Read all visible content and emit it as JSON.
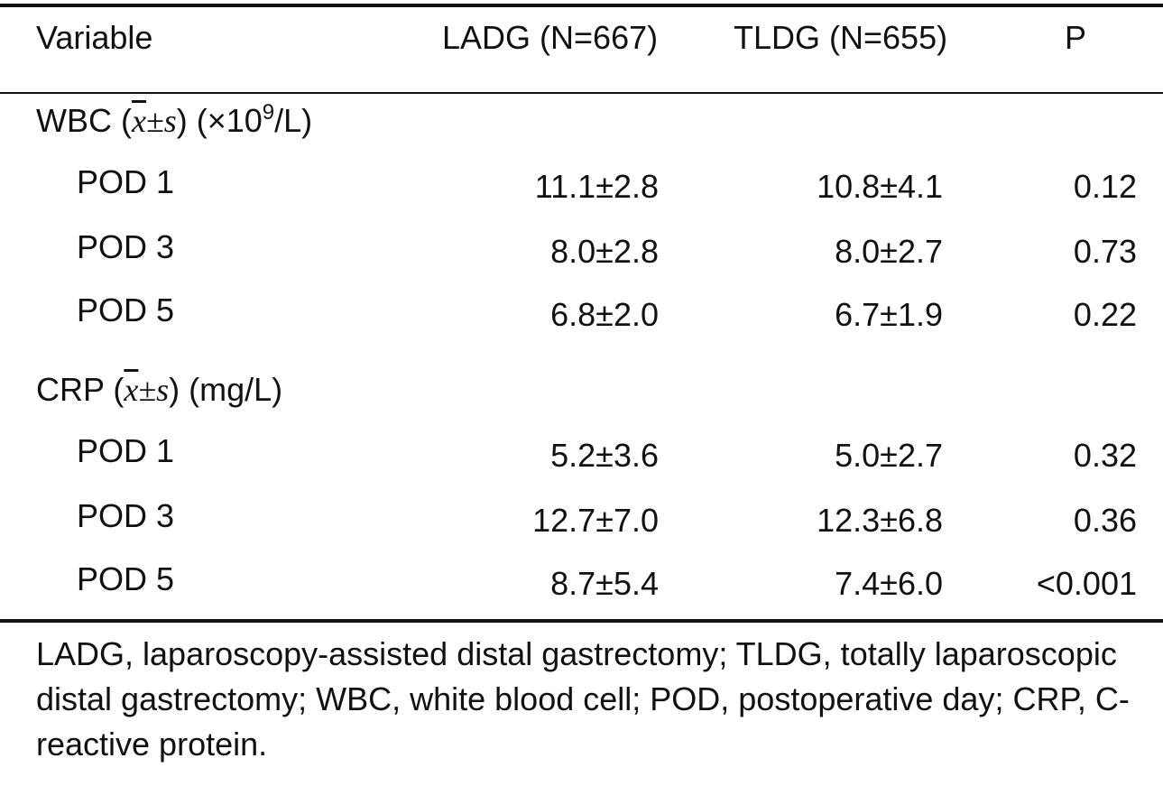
{
  "header": {
    "variable": "Variable",
    "ladg": "LADG (N=667)",
    "tldg": "TLDG (N=655)",
    "p": "P"
  },
  "sections": [
    {
      "title_prefix": "WBC (",
      "symbol_x": "x",
      "symbol_pm": "±",
      "symbol_s": "s",
      "title_unit_prefix": ") (×10",
      "title_unit_exp": "9",
      "title_unit_suffix": "/L)",
      "rows": [
        {
          "label": "POD 1",
          "ladg": "11.1±2.8",
          "tldg": "10.8±4.1",
          "p": "0.12"
        },
        {
          "label": "POD 3",
          "ladg": "8.0±2.8",
          "tldg": "8.0±2.7",
          "p": "0.73"
        },
        {
          "label": "POD 5",
          "ladg": "6.8±2.0",
          "tldg": "6.7±1.9",
          "p": "0.22"
        }
      ]
    },
    {
      "title_prefix": "CRP (",
      "symbol_x": "x",
      "symbol_pm": "±",
      "symbol_s": "s",
      "title_unit_suffix": ") (mg/L)",
      "rows": [
        {
          "label": "POD 1",
          "ladg": "5.2±3.6",
          "tldg": "5.0±2.7",
          "p": "0.32"
        },
        {
          "label": "POD 3",
          "ladg": "12.7±7.0",
          "tldg": "12.3±6.8",
          "p": "0.36"
        },
        {
          "label": "POD 5",
          "ladg": "8.7±5.4",
          "tldg": "7.4±6.0",
          "p": "<0.001"
        }
      ]
    }
  ],
  "footnote": "LADG, laparoscopy-assisted distal gastrectomy; TLDG, totally laparoscopic distal gastrectomy; WBC, white blood cell; POD, postoperative day; CRP, C-reactive protein."
}
